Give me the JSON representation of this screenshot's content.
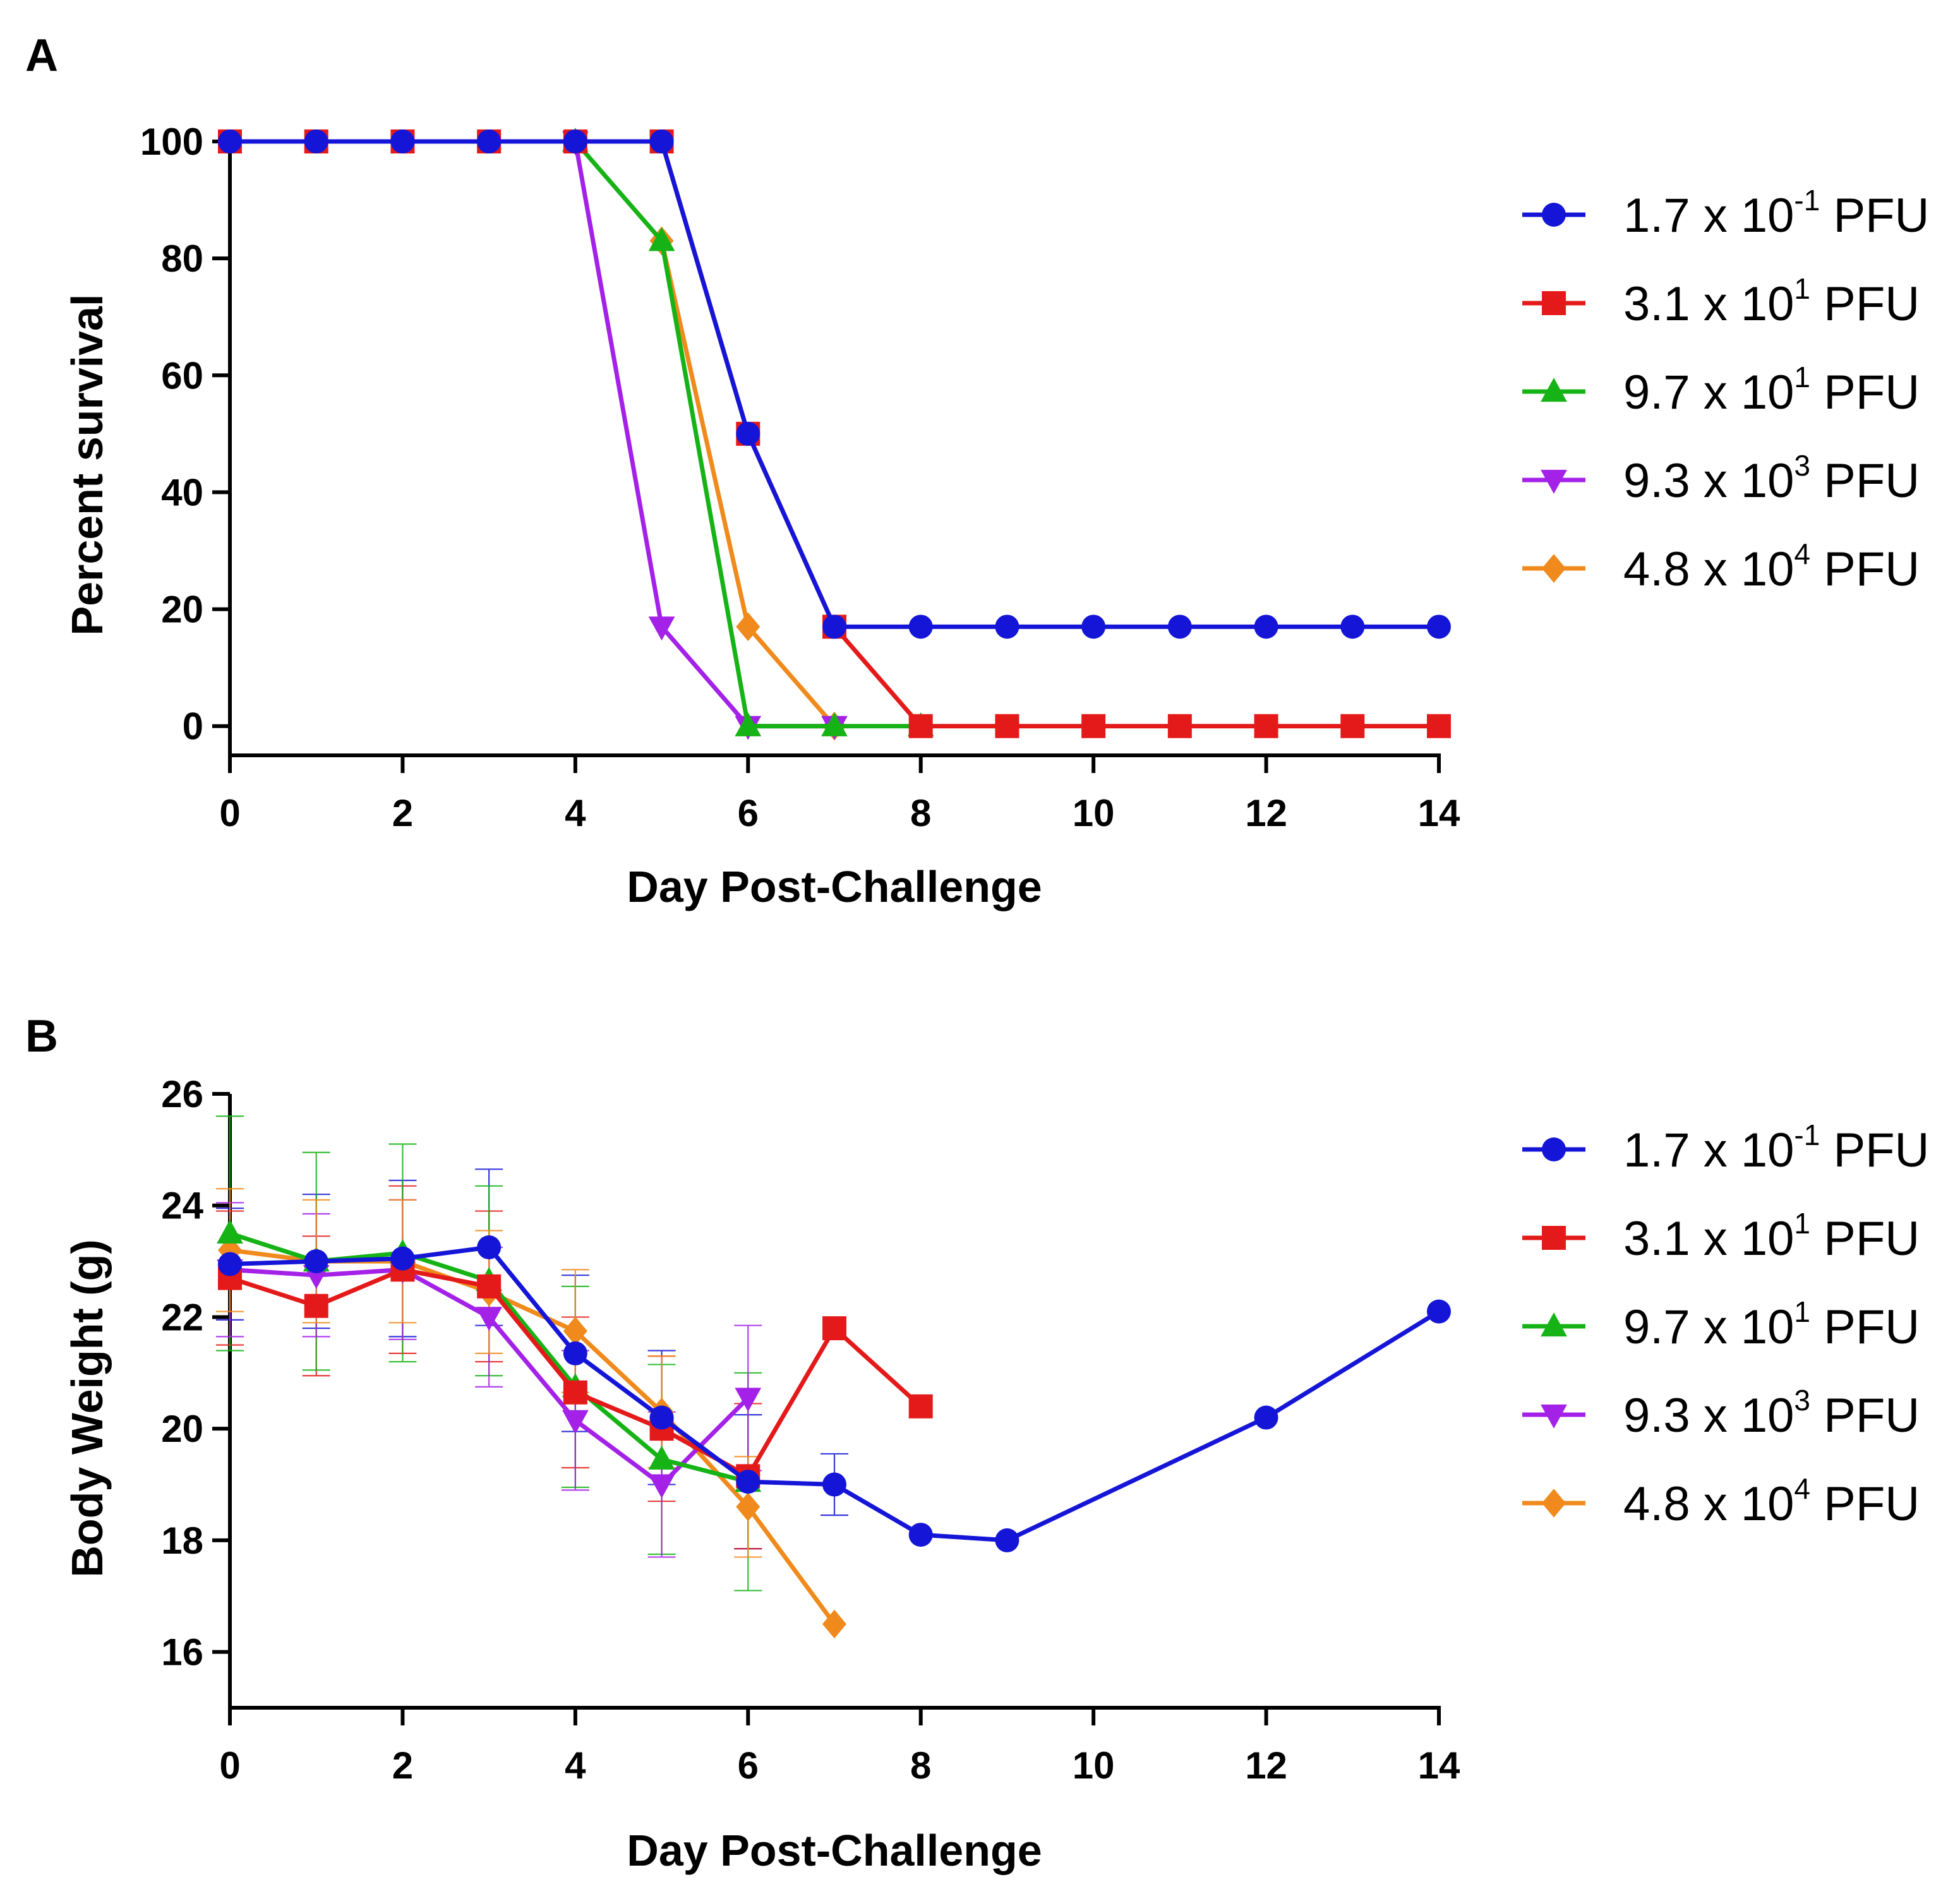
{
  "figure": {
    "panel_a_letter": "A",
    "panel_b_letter": "B"
  },
  "colors": {
    "series": [
      "#1515d8",
      "#e41a1a",
      "#16b316",
      "#a421e8",
      "#f08a1c"
    ],
    "axis": "#000000"
  },
  "chart_data": [
    {
      "id": "A",
      "type": "line",
      "title": "",
      "xlabel": "Day Post-Challenge",
      "ylabel": "Percent survival",
      "xlim": [
        0,
        14
      ],
      "ylim": [
        -5,
        100
      ],
      "xticks": [
        0,
        2,
        4,
        6,
        8,
        10,
        12,
        14
      ],
      "yticks": [
        0,
        20,
        40,
        60,
        80,
        100
      ],
      "grid": false,
      "legend_position": "right",
      "series": [
        {
          "name": "1.7 x 10-1 PFU",
          "base": "1.7 x 10",
          "exp": "-1",
          "unit": "PFU",
          "marker": "circle",
          "x": [
            0,
            1,
            2,
            3,
            4,
            5,
            6,
            7,
            8,
            9,
            10,
            11,
            12,
            13,
            14
          ],
          "y": [
            100,
            100,
            100,
            100,
            100,
            100,
            50,
            17,
            17,
            17,
            17,
            17,
            17,
            17,
            17
          ]
        },
        {
          "name": "3.1 x 101 PFU",
          "base": "3.1 x 10",
          "exp": "1",
          "unit": "PFU",
          "marker": "square",
          "x": [
            0,
            1,
            2,
            3,
            4,
            5,
            6,
            7,
            8,
            9,
            10,
            11,
            12,
            13,
            14
          ],
          "y": [
            100,
            100,
            100,
            100,
            100,
            100,
            50,
            17,
            0,
            0,
            0,
            0,
            0,
            0,
            0
          ]
        },
        {
          "name": "9.7 x 101 PFU",
          "base": "9.7 x 10",
          "exp": "1",
          "unit": "PFU",
          "marker": "triangle-up",
          "x": [
            4,
            5,
            6,
            7,
            8
          ],
          "y": [
            100,
            83,
            0,
            0,
            0
          ]
        },
        {
          "name": "9.3 x 103 PFU",
          "base": "9.3 x 10",
          "exp": "3",
          "unit": "PFU",
          "marker": "triangle-down",
          "x": [
            4,
            5,
            6,
            7
          ],
          "y": [
            100,
            17,
            0,
            0
          ]
        },
        {
          "name": "4.8 x 104 PFU",
          "base": "4.8 x 10",
          "exp": "4",
          "unit": "PFU",
          "marker": "diamond",
          "x": [
            5,
            6,
            7
          ],
          "y": [
            83,
            17,
            0
          ]
        }
      ]
    },
    {
      "id": "B",
      "type": "line",
      "title": "",
      "xlabel": "Day Post-Challenge",
      "ylabel": "Body Weight (g)",
      "xlim": [
        0,
        14
      ],
      "ylim": [
        15,
        26
      ],
      "xticks": [
        0,
        2,
        4,
        6,
        8,
        10,
        12,
        14
      ],
      "yticks": [
        16,
        18,
        20,
        22,
        24,
        26
      ],
      "grid": false,
      "legend_position": "right",
      "series": [
        {
          "name": "1.7 x 10-1 PFU",
          "base": "1.7 x 10",
          "exp": "-1",
          "unit": "PFU",
          "marker": "circle",
          "x": [
            0,
            1,
            2,
            3,
            4,
            5,
            6,
            7,
            8,
            9,
            12,
            14
          ],
          "y": [
            22.95,
            23.0,
            23.05,
            23.25,
            21.35,
            20.2,
            19.05,
            19.0,
            18.1,
            18.0,
            20.2,
            22.1
          ],
          "err": [
            1.0,
            1.2,
            1.4,
            1.4,
            1.4,
            1.2,
            1.2,
            0.55,
            0,
            0,
            0,
            0
          ]
        },
        {
          "name": "3.1 x 101 PFU",
          "base": "3.1 x 10",
          "exp": "1",
          "unit": "PFU",
          "marker": "square",
          "x": [
            0,
            1,
            2,
            3,
            4,
            5,
            6,
            7,
            8
          ],
          "y": [
            22.7,
            22.2,
            22.85,
            22.55,
            20.65,
            20.0,
            19.15,
            21.8,
            20.4
          ],
          "err": [
            1.2,
            1.25,
            1.5,
            1.35,
            1.35,
            1.3,
            1.3,
            0,
            0
          ]
        },
        {
          "name": "9.7 x 101 PFU",
          "base": "9.7 x 10",
          "exp": "1",
          "unit": "PFU",
          "marker": "triangle-up",
          "x": [
            0,
            1,
            2,
            3,
            4,
            5,
            6
          ],
          "y": [
            23.5,
            23.0,
            23.15,
            22.65,
            20.75,
            19.45,
            19.05
          ],
          "err": [
            2.1,
            1.95,
            1.95,
            1.7,
            1.8,
            1.7,
            1.95
          ]
        },
        {
          "name": "9.3 x 103 PFU",
          "base": "9.3 x 10",
          "exp": "3",
          "unit": "PFU",
          "marker": "triangle-down",
          "x": [
            0,
            1,
            2,
            3,
            4,
            5,
            6
          ],
          "y": [
            22.85,
            22.75,
            22.85,
            22.0,
            20.15,
            19.0,
            20.55
          ],
          "err": [
            1.2,
            1.1,
            1.25,
            1.25,
            1.25,
            1.3,
            1.3
          ]
        },
        {
          "name": "4.8 x 104 PFU",
          "base": "4.8 x 10",
          "exp": "4",
          "unit": "PFU",
          "marker": "diamond",
          "x": [
            0,
            1,
            2,
            3,
            4,
            5,
            6,
            7
          ],
          "y": [
            23.2,
            23.0,
            23.0,
            22.45,
            21.75,
            20.3,
            18.6,
            16.5
          ],
          "err": [
            1.1,
            1.1,
            1.1,
            1.1,
            1.1,
            1.0,
            0.9,
            0
          ]
        }
      ]
    }
  ]
}
